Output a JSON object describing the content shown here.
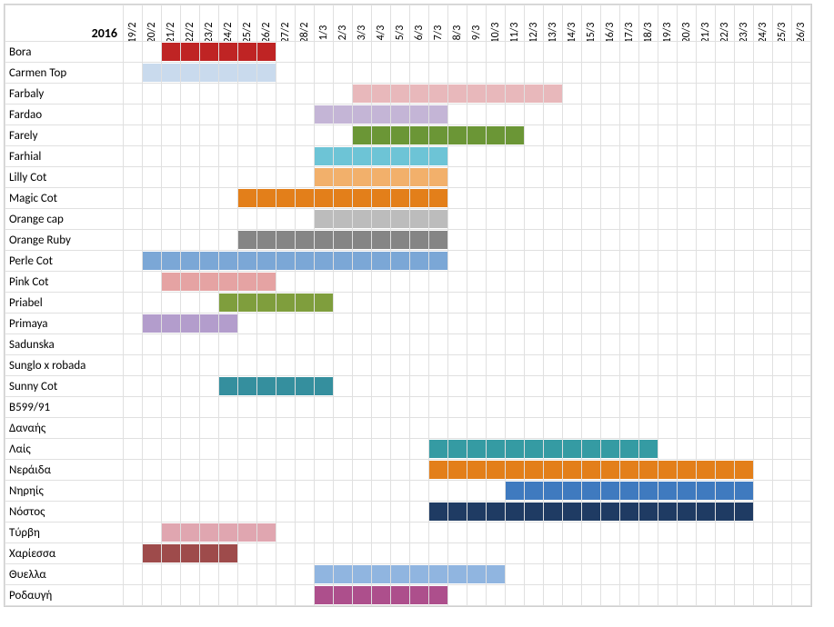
{
  "gantt": {
    "type": "gantt",
    "year_label": "2016",
    "grid_color": "#e0e0e0",
    "background_color": "#ffffff",
    "text_color": "#000000",
    "header_fontsize": 12,
    "row_fontsize": 13,
    "dates": [
      "19/2",
      "20/2",
      "21/2",
      "22/2",
      "23/2",
      "24/2",
      "25/2",
      "26/2",
      "27/2",
      "28/2",
      "1/3",
      "2/3",
      "3/3",
      "4/3",
      "5/3",
      "6/3",
      "7/3",
      "8/3",
      "9/3",
      "10/3",
      "11/3",
      "12/3",
      "13/3",
      "14/3",
      "15/3",
      "16/3",
      "17/3",
      "18/3",
      "19/3",
      "20/3",
      "21/3",
      "22/3",
      "23/3",
      "24/3",
      "25/3",
      "26/3"
    ],
    "rows": [
      {
        "label": "Bora",
        "bars": [
          {
            "start": "21/2",
            "end": "26/2",
            "color": "#bf2424"
          }
        ]
      },
      {
        "label": "Carmen Top",
        "bars": [
          {
            "start": "20/2",
            "end": "26/2",
            "color": "#c9daed"
          }
        ]
      },
      {
        "label": "Farbaly",
        "bars": [
          {
            "start": "3/3",
            "end": "13/3",
            "color": "#e8b8bb"
          }
        ]
      },
      {
        "label": "Fardao",
        "bars": [
          {
            "start": "1/3",
            "end": "7/3",
            "color": "#c4b5d6"
          }
        ]
      },
      {
        "label": "Farely",
        "bars": [
          {
            "start": "3/3",
            "end": "11/3",
            "color": "#6b9636"
          }
        ]
      },
      {
        "label": "Farhial",
        "bars": [
          {
            "start": "1/3",
            "end": "7/3",
            "color": "#6dc4d6"
          }
        ]
      },
      {
        "label": "Lilly Cot",
        "bars": [
          {
            "start": "1/3",
            "end": "7/3",
            "color": "#f2b06b"
          }
        ]
      },
      {
        "label": "Magic Cot",
        "bars": [
          {
            "start": "25/2",
            "end": "7/3",
            "color": "#e37f1a"
          }
        ]
      },
      {
        "label": "Orange cap",
        "bars": [
          {
            "start": "1/3",
            "end": "7/3",
            "color": "#bcbcbc"
          }
        ]
      },
      {
        "label": "Orange Ruby",
        "bars": [
          {
            "start": "25/2",
            "end": "7/3",
            "color": "#858585"
          }
        ]
      },
      {
        "label": "Perle Cot",
        "bars": [
          {
            "start": "20/2",
            "end": "7/3",
            "color": "#7ba7d6"
          }
        ]
      },
      {
        "label": "Pink Cot",
        "bars": [
          {
            "start": "21/2",
            "end": "26/2",
            "color": "#e5a3a3"
          }
        ]
      },
      {
        "label": "Priabel",
        "bars": [
          {
            "start": "24/2",
            "end": "1/3",
            "color": "#7f9e3d"
          }
        ]
      },
      {
        "label": "Primaya",
        "bars": [
          {
            "start": "20/2",
            "end": "24/2",
            "color": "#b39dcc"
          }
        ]
      },
      {
        "label": "Sadunska",
        "bars": []
      },
      {
        "label": "Sunglo x robada",
        "bars": []
      },
      {
        "label": "Sunny Cot",
        "bars": [
          {
            "start": "24/2",
            "end": "1/3",
            "color": "#358f9e"
          }
        ]
      },
      {
        "label": "B599/91",
        "bars": []
      },
      {
        "label": "Δαναής",
        "bars": []
      },
      {
        "label": "Λαίς",
        "bars": [
          {
            "start": "7/3",
            "end": "18/3",
            "color": "#359ba3"
          }
        ]
      },
      {
        "label": "Νεράιδα",
        "bars": [
          {
            "start": "7/3",
            "end": "23/3",
            "color": "#e37f1a"
          }
        ]
      },
      {
        "label": "Νηρηίς",
        "bars": [
          {
            "start": "11/3",
            "end": "23/3",
            "color": "#3f7abf"
          }
        ]
      },
      {
        "label": "Νόστος",
        "bars": [
          {
            "start": "7/3",
            "end": "23/3",
            "color": "#1f3b63"
          }
        ]
      },
      {
        "label": "Τύρβη",
        "bars": [
          {
            "start": "21/2",
            "end": "26/2",
            "color": "#e0a6b0"
          }
        ]
      },
      {
        "label": "Χαρίεσσα",
        "bars": [
          {
            "start": "20/2",
            "end": "24/2",
            "color": "#9e4b4b"
          }
        ]
      },
      {
        "label": "Θυελλα",
        "bars": [
          {
            "start": "1/3",
            "end": "10/3",
            "color": "#90b5e0"
          }
        ]
      },
      {
        "label": "Ροδαυγή",
        "bars": [
          {
            "start": "1/3",
            "end": "7/3",
            "color": "#ad4f8c"
          }
        ]
      }
    ]
  }
}
